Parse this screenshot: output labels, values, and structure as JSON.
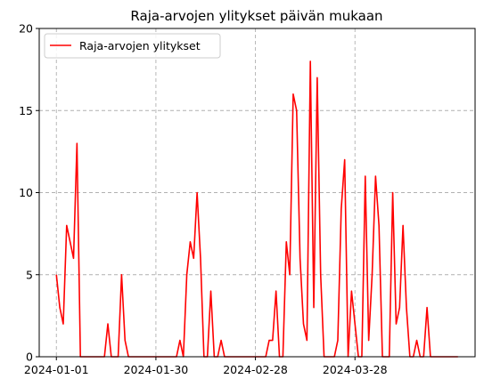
{
  "chart_data": {
    "type": "line",
    "title": "Raja-arvojen ylitykset päivän mukaan",
    "xlabel": "",
    "ylabel": "",
    "x_start": "2024-01-01",
    "x_end": "2024-04-27",
    "xlim": [
      "2023-12-27",
      "2024-05-02"
    ],
    "ylim": [
      0,
      20
    ],
    "x_ticks": [
      "2024-01-01",
      "2024-01-30",
      "2024-02-28",
      "2024-03-28"
    ],
    "y_ticks": [
      0,
      5,
      10,
      15,
      20
    ],
    "grid": true,
    "legend_position": "top-left",
    "series": [
      {
        "name": "Raja-arvojen ylitykset",
        "color": "#ff0000",
        "dates": [
          "2024-01-01",
          "2024-01-02",
          "2024-01-03",
          "2024-01-04",
          "2024-01-05",
          "2024-01-06",
          "2024-01-07",
          "2024-01-08",
          "2024-01-09",
          "2024-01-10",
          "2024-01-11",
          "2024-01-12",
          "2024-01-13",
          "2024-01-14",
          "2024-01-15",
          "2024-01-16",
          "2024-01-17",
          "2024-01-18",
          "2024-01-19",
          "2024-01-20",
          "2024-01-21",
          "2024-01-22",
          "2024-01-23",
          "2024-01-24",
          "2024-01-25",
          "2024-01-26",
          "2024-01-27",
          "2024-01-28",
          "2024-01-29",
          "2024-01-30",
          "2024-01-31",
          "2024-02-01",
          "2024-02-02",
          "2024-02-03",
          "2024-02-04",
          "2024-02-05",
          "2024-02-06",
          "2024-02-07",
          "2024-02-08",
          "2024-02-09",
          "2024-02-10",
          "2024-02-11",
          "2024-02-12",
          "2024-02-13",
          "2024-02-14",
          "2024-02-15",
          "2024-02-16",
          "2024-02-17",
          "2024-02-18",
          "2024-02-19",
          "2024-02-20",
          "2024-02-21",
          "2024-02-22",
          "2024-02-23",
          "2024-02-24",
          "2024-02-25",
          "2024-02-26",
          "2024-02-27",
          "2024-02-28",
          "2024-02-29",
          "2024-03-01",
          "2024-03-02",
          "2024-03-03",
          "2024-03-04",
          "2024-03-05",
          "2024-03-06",
          "2024-03-07",
          "2024-03-08",
          "2024-03-09",
          "2024-03-10",
          "2024-03-11",
          "2024-03-12",
          "2024-03-13",
          "2024-03-14",
          "2024-03-15",
          "2024-03-16",
          "2024-03-17",
          "2024-03-18",
          "2024-03-19",
          "2024-03-20",
          "2024-03-21",
          "2024-03-22",
          "2024-03-23",
          "2024-03-24",
          "2024-03-25",
          "2024-03-26",
          "2024-03-27",
          "2024-03-28",
          "2024-03-29",
          "2024-03-30",
          "2024-03-31",
          "2024-04-01",
          "2024-04-02",
          "2024-04-03",
          "2024-04-04",
          "2024-04-05",
          "2024-04-06",
          "2024-04-07",
          "2024-04-08",
          "2024-04-09",
          "2024-04-10",
          "2024-04-11",
          "2024-04-12",
          "2024-04-13",
          "2024-04-14",
          "2024-04-15",
          "2024-04-16",
          "2024-04-17",
          "2024-04-18",
          "2024-04-19",
          "2024-04-20",
          "2024-04-21",
          "2024-04-22",
          "2024-04-23",
          "2024-04-24",
          "2024-04-25",
          "2024-04-26",
          "2024-04-27"
        ],
        "values": [
          5,
          3,
          2,
          8,
          7,
          6,
          13,
          0,
          0,
          0,
          0,
          0,
          0,
          0,
          0,
          2,
          0,
          0,
          0,
          5,
          1,
          0,
          0,
          0,
          0,
          0,
          0,
          0,
          0,
          0,
          0,
          0,
          0,
          0,
          0,
          0,
          1,
          0,
          5,
          7,
          6,
          10,
          6,
          0,
          0,
          4,
          0,
          0,
          1,
          0,
          0,
          0,
          0,
          0,
          0,
          0,
          0,
          0,
          0,
          0,
          0,
          0,
          1,
          1,
          4,
          0,
          0,
          7,
          5,
          16,
          15,
          6,
          2,
          1,
          18,
          3,
          17,
          5,
          0,
          0,
          0,
          0,
          1,
          9,
          12,
          0,
          4,
          2,
          0,
          0,
          11,
          1,
          5,
          11,
          8,
          0,
          0,
          0,
          10,
          2,
          3,
          8,
          3,
          0,
          0,
          1,
          0,
          0,
          3,
          0,
          0,
          0,
          0,
          0,
          0,
          0,
          0,
          0
        ]
      }
    ]
  }
}
